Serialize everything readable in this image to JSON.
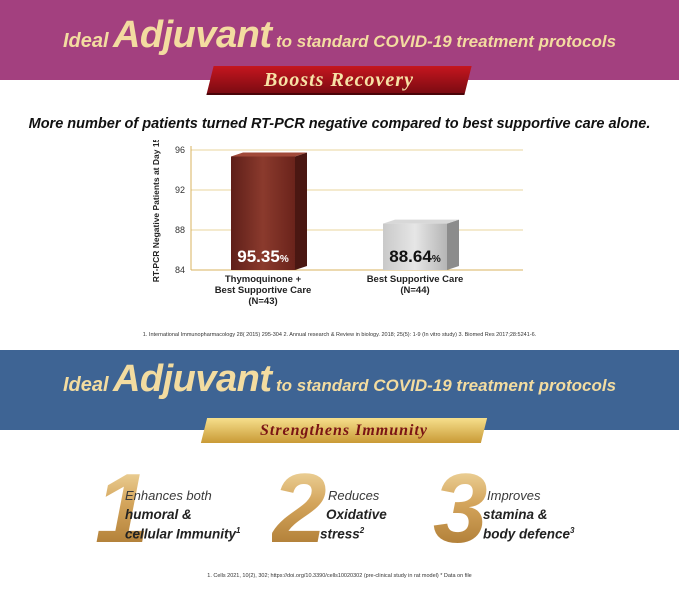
{
  "header": {
    "ideal": "Ideal",
    "adjuvant": "Adjuvant",
    "tail": "to standard COVID-19 treatment protocols",
    "tag": "Boosts Recovery"
  },
  "subtitle": "More number of patients turned RT-PCR negative compared to best supportive care alone.",
  "chart_data": {
    "type": "bar",
    "categories": [
      "Thymoquinone + Best Supportive Care (N=43)",
      "Best Supportive Care (N=44)"
    ],
    "category_lines": [
      [
        "Thymoquinone +",
        "Best Supportive Care",
        "(N=43)"
      ],
      [
        "Best Supportive Care",
        "(N=44)"
      ]
    ],
    "values": [
      95.35,
      88.64
    ],
    "value_labels": [
      "95.35",
      "88.64"
    ],
    "value_unit": "%",
    "ylabel": "RT-PCR Negative Patients at Day 15",
    "ylim": [
      84,
      96
    ],
    "yticks": [
      84,
      88,
      92,
      96
    ],
    "grid": true,
    "colors": [
      "#7a2b22",
      "#9a9a9a"
    ]
  },
  "references_1": "1. International Immunopharmacology 28( 2015) 295-304    2. Annual research & Review in biology. 2018; 25(5): 1-9 (In vitro study)    3. Biomed Res 2017;28:5241-6.",
  "section2": {
    "ideal": "Ideal",
    "adjuvant": "Adjuvant",
    "tail": "to standard COVID-19 treatment protocols",
    "tag": "Strengthens Immunity"
  },
  "benefits": [
    {
      "num": "1",
      "line1": "Enhances both",
      "line2": "humoral &",
      "line3": "cellular Immunity",
      "sup": "1"
    },
    {
      "num": "2",
      "line1": "Reduces",
      "line2": "Oxidative",
      "line3": "stress",
      "sup": "2"
    },
    {
      "num": "3",
      "line1": "Improves",
      "line2": "stamina &",
      "line3": "body defence",
      "sup": "3"
    }
  ],
  "references_2": "1. Cells  2021,  10(2), 302;  https://doi.org/10.3390/cells10020302    (pre-clinical study in rat model)        * Data on file",
  "colors": {
    "top_banner": "#a3407f",
    "mid_banner": "#3e6494",
    "gold_text": "#f3dca0",
    "bar1": "#7a2b22",
    "bar2": "#9a9a9a"
  }
}
